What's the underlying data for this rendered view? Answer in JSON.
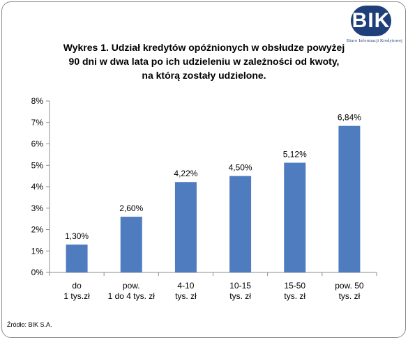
{
  "title_lines": [
    "Wykres 1. Udział kredytów opóźnionych w obsłudze powyżej",
    "90 dni w dwa lata po ich udzieleniu w zależności od kwoty,",
    "na którą zostały udzielone."
  ],
  "logo": {
    "text": "BIK",
    "subtitle": "Biuro Informacji Kredytowej"
  },
  "source": "Źródło: BIK S.A.",
  "colors": {
    "bar": "#4f7cbe",
    "logo": "#1e3f7a"
  },
  "chart_data": {
    "type": "bar",
    "categories": [
      [
        "do",
        "1 tys.zł"
      ],
      [
        "pow.",
        "1 do 4 tys. zł"
      ],
      [
        "4-10",
        "tys. zł"
      ],
      [
        "10-15",
        "tys. zł"
      ],
      [
        "15-50",
        "tys. zł"
      ],
      [
        "pow. 50",
        "tys. zł"
      ]
    ],
    "values": [
      1.3,
      2.6,
      4.22,
      4.5,
      5.12,
      6.84
    ],
    "value_labels": [
      "1,30%",
      "2,60%",
      "4,22%",
      "4,50%",
      "5,12%",
      "6,84%"
    ],
    "yticks": [
      "0%",
      "1%",
      "2%",
      "3%",
      "4%",
      "5%",
      "6%",
      "7%",
      "8%"
    ],
    "ylim": [
      0,
      8
    ],
    "grid": false
  }
}
